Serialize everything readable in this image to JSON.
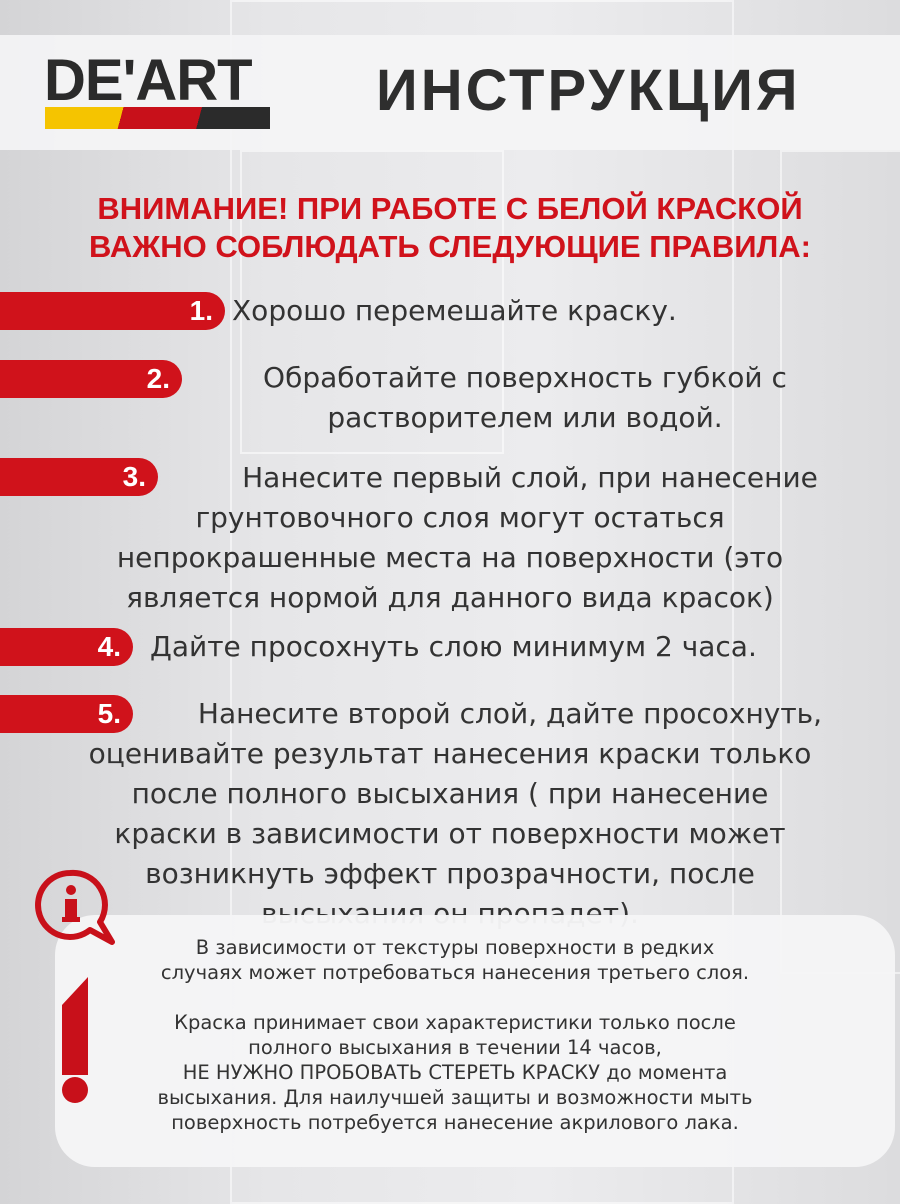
{
  "brand": {
    "logo": "DE'ART",
    "colors": {
      "yellow": "#f5c400",
      "red": "#c8101a",
      "black": "#2b2b2b"
    }
  },
  "header": {
    "title": "ИНСТРУКЦИЯ"
  },
  "warning": {
    "lines": [
      "ВНИМАНИЕ! ПРИ РАБОТЕ С БЕЛОЙ КРАСКОЙ",
      "ВАЖНО СОБЛЮДАТЬ СЛЕДУЮЩИЕ ПРАВИЛА:"
    ],
    "color": "#d0121b"
  },
  "steps": [
    {
      "number": "1.",
      "lines": [
        "Хорошо перемешайте краску."
      ]
    },
    {
      "number": "2.",
      "lines": [
        "Обработайте поверхность губкой с",
        "растворителем или водой."
      ]
    },
    {
      "number": "3.",
      "lines": [
        "Нанесите первый слой, при нанесение",
        "грунтовочного слоя могут остаться",
        "непрокрашенные места на поверхности (это",
        "является нормой для данного вида красок)"
      ]
    },
    {
      "number": "4.",
      "lines": [
        "Дайте просохнуть слою минимум 2 часа."
      ]
    },
    {
      "number": "5.",
      "lines": [
        "Нанесите второй слой, дайте просохнуть,",
        "оценивайте результат нанесения краски только",
        "после полного высыхания ( при нанесение",
        "краски в зависимости от поверхности может",
        "возникнуть эффект прозрачности, после",
        "высыхания он пропадет)."
      ]
    }
  ],
  "note": {
    "icons": [
      "info-icon",
      "exclamation-icon"
    ],
    "paragraph1": [
      "В зависимости от текстуры поверхности в редких",
      "случаях может потребоваться нанесения третьего слоя."
    ],
    "paragraph2": [
      "Краска принимает свои характеристики только после",
      "полного высыхания в течении 14 часов,",
      "НЕ НУЖНО  ПРОБОВАТЬ СТЕРЕТЬ КРАСКУ до момента",
      "высыхания. Для наилучшей защиты и возможности мыть",
      "поверхность потребуется нанесение акрилового лака."
    ]
  }
}
